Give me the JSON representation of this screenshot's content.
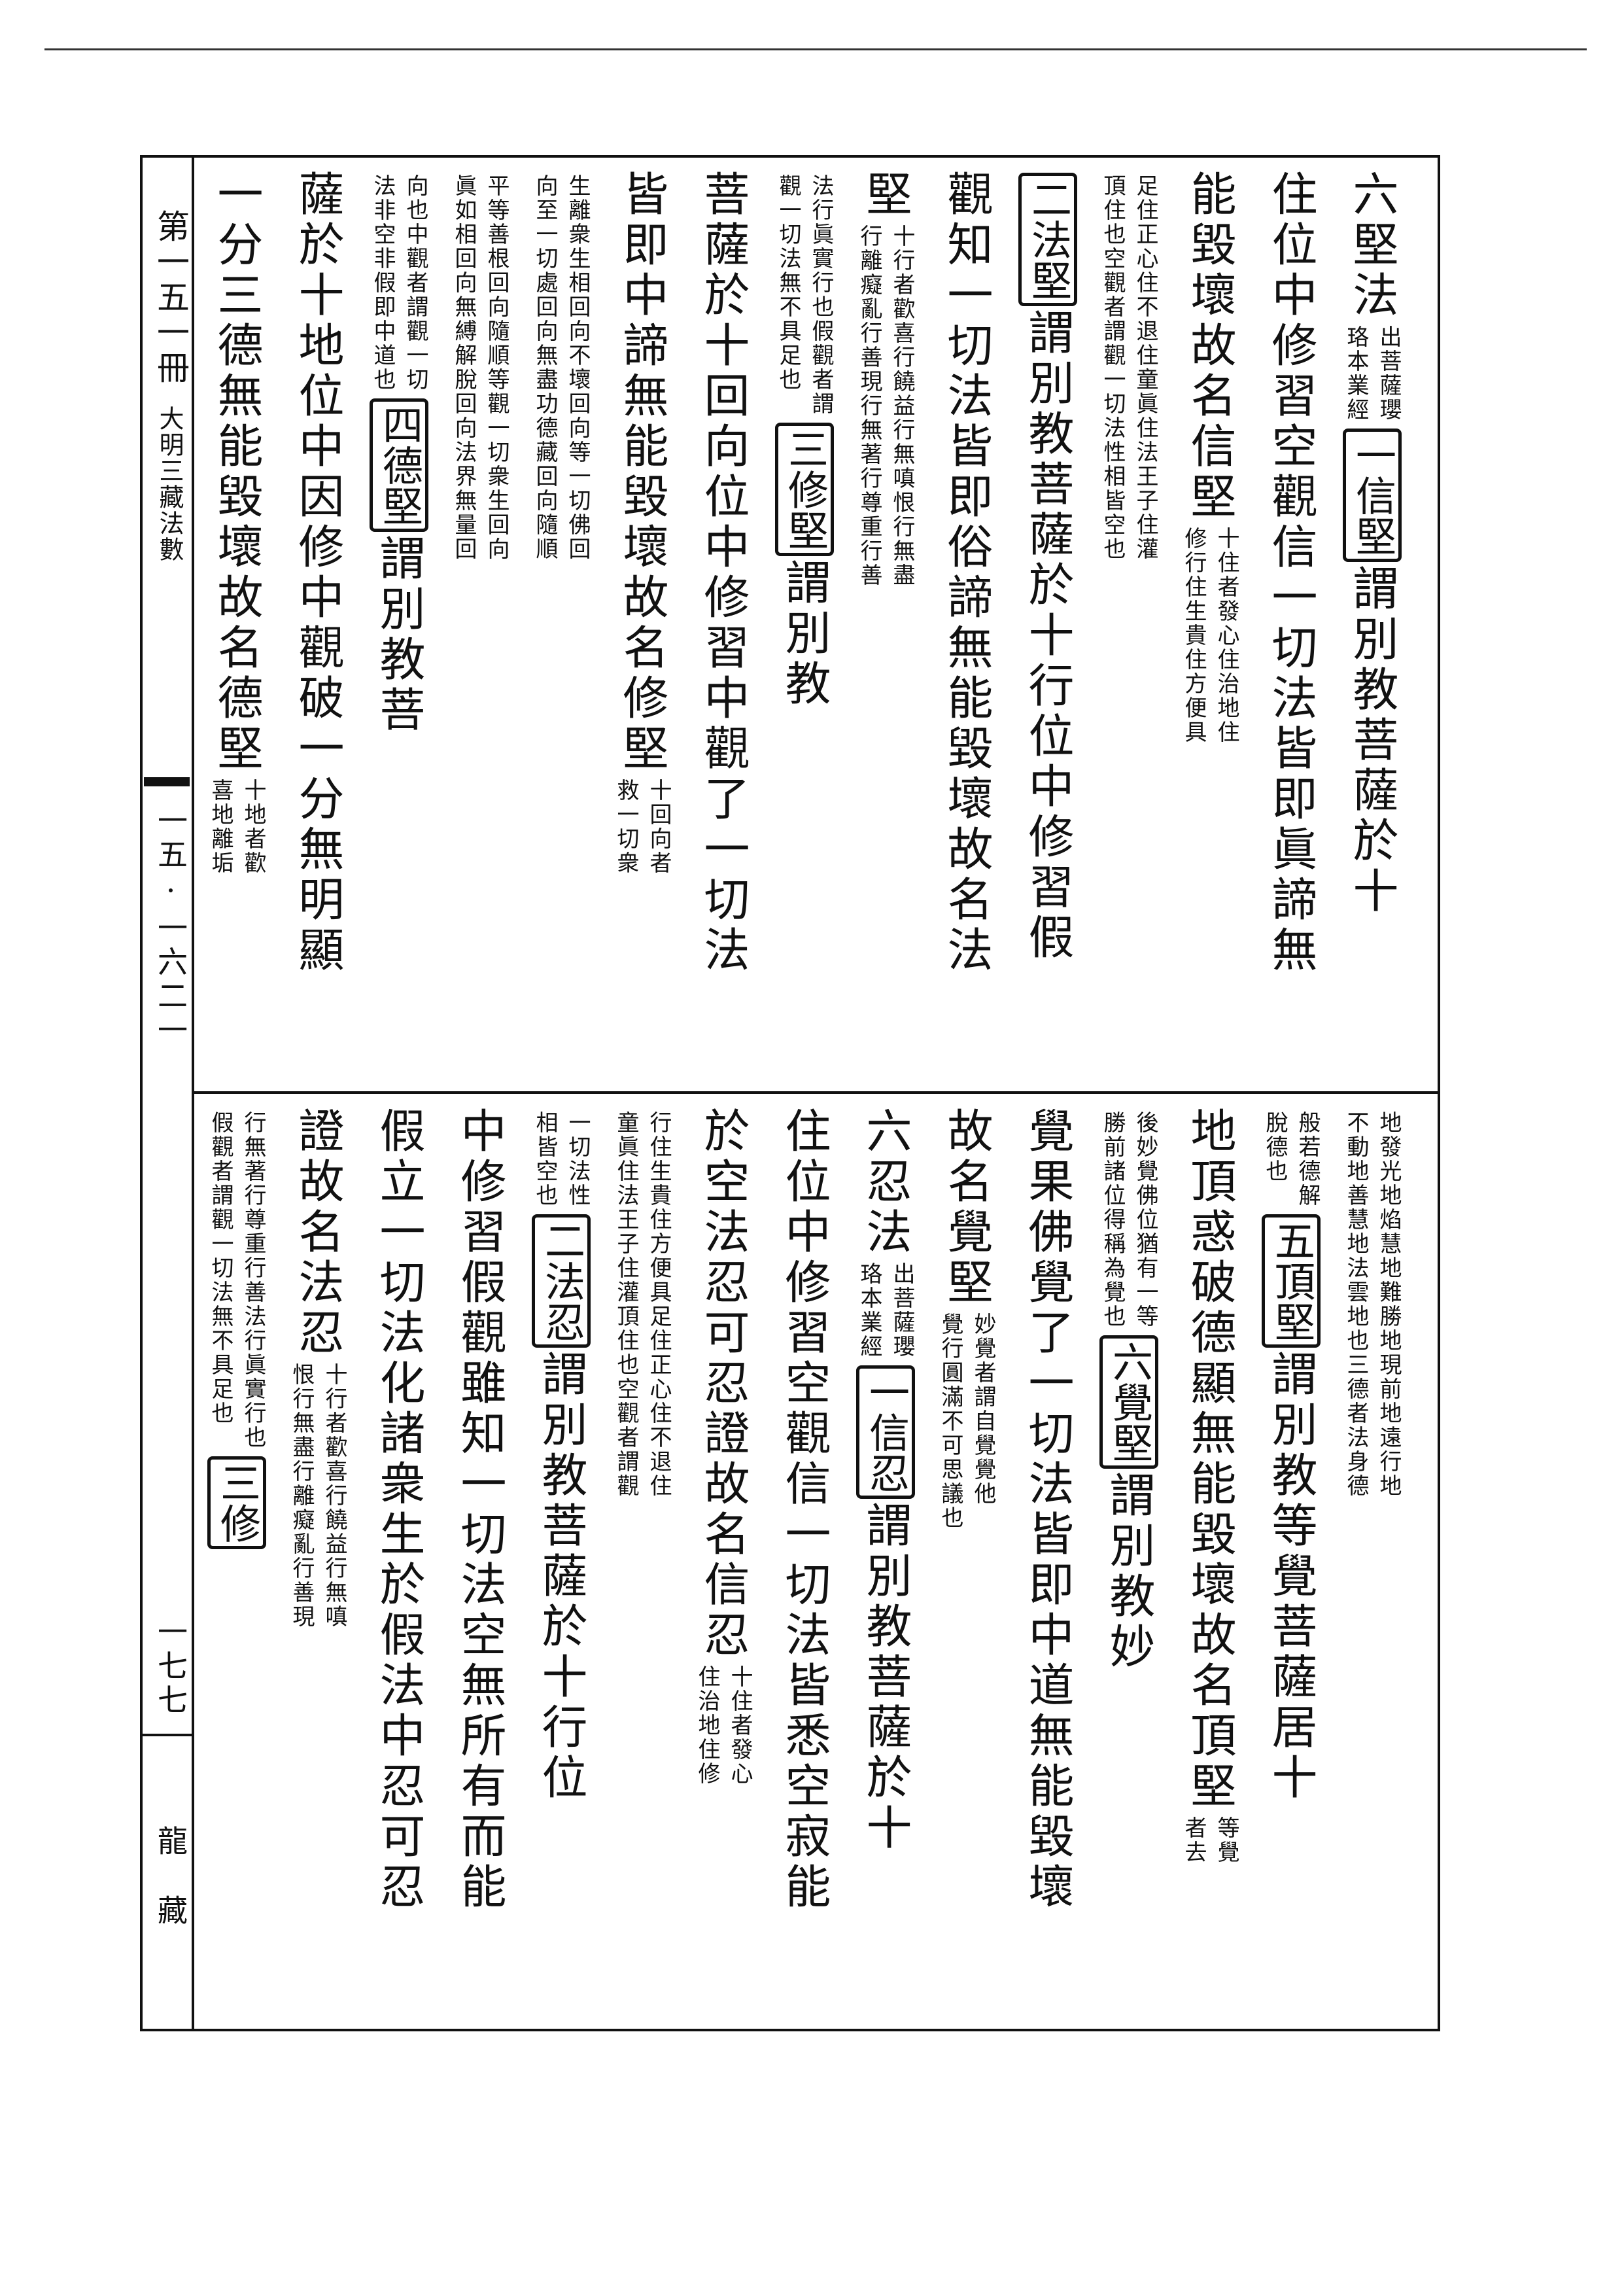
{
  "side": {
    "volume": "第一五一冊",
    "title": "大明三藏法數",
    "code": "一五·一六二一",
    "page": "一七七",
    "collection": "龍藏"
  },
  "panels": [
    {
      "columns": [
        {
          "segments": [
            {
              "kind": "big",
              "text": "六堅法"
            },
            {
              "kind": "note",
              "lines": [
                "出菩薩瓔",
                "珞本業經"
              ]
            },
            {
              "kind": "box",
              "text": "一信堅"
            },
            {
              "kind": "big",
              "text": "謂別教菩薩於十"
            }
          ]
        },
        {
          "segments": [
            {
              "kind": "big",
              "text": "住位中修習空觀信一切法皆即眞諦無"
            }
          ]
        },
        {
          "segments": [
            {
              "kind": "big",
              "text": "能毀壞故名信堅"
            },
            {
              "kind": "note",
              "lines": [
                "十住者發心住治地住",
                "修行住生貴住方便具"
              ]
            }
          ]
        },
        {
          "segments": [
            {
              "kind": "note",
              "lines": [
                "足住正心住不退住童眞住法王子住灌",
                "頂住也空觀者謂觀一切法性相皆空也"
              ]
            }
          ]
        },
        {
          "segments": [
            {
              "kind": "box",
              "text": "二法堅"
            },
            {
              "kind": "big",
              "text": "謂別教菩薩於十行位中修習假"
            }
          ]
        },
        {
          "segments": [
            {
              "kind": "big",
              "text": "觀知一切法皆即俗諦無能毀壞故名法"
            }
          ]
        },
        {
          "segments": [
            {
              "kind": "big",
              "text": "堅"
            },
            {
              "kind": "note",
              "lines": [
                "十行者歡喜行饒益行無嗔恨行無盡",
                "行離癡亂行善現行無著行尊重行善"
              ]
            }
          ]
        },
        {
          "segments": [
            {
              "kind": "note",
              "lines": [
                "法行眞實行也假觀者謂",
                "觀一切法無不具足也"
              ]
            },
            {
              "kind": "box",
              "text": "三修堅"
            },
            {
              "kind": "big",
              "text": "謂別教"
            }
          ]
        },
        {
          "segments": [
            {
              "kind": "big",
              "text": "菩薩於十回向位中修習中觀了一切法"
            }
          ]
        },
        {
          "segments": [
            {
              "kind": "big",
              "text": "皆即中諦無能毀壞故名修堅"
            },
            {
              "kind": "note",
              "lines": [
                "十回向者",
                "救一切衆"
              ]
            }
          ]
        },
        {
          "segments": [
            {
              "kind": "note",
              "lines": [
                "生離衆生相回向不壞回向等一切佛回",
                "向至一切處回向無盡功德藏回向隨順"
              ]
            }
          ]
        },
        {
          "segments": [
            {
              "kind": "note",
              "lines": [
                "平等善根回向隨順等觀一切衆生回向",
                "眞如相回向無縛解脫回向法界無量回"
              ]
            }
          ]
        },
        {
          "segments": [
            {
              "kind": "note",
              "lines": [
                "向也中觀者謂觀一切",
                "法非空非假即中道也"
              ]
            },
            {
              "kind": "box",
              "text": "四德堅"
            },
            {
              "kind": "big",
              "text": "謂別教菩"
            }
          ]
        },
        {
          "segments": [
            {
              "kind": "big",
              "text": "薩於十地位中因修中觀破一分無明顯"
            }
          ]
        },
        {
          "segments": [
            {
              "kind": "big",
              "text": "一分三德無能毀壞故名德堅"
            },
            {
              "kind": "note",
              "lines": [
                "十地者歡",
                "喜地離垢"
              ]
            }
          ]
        }
      ]
    },
    {
      "columns": [
        {
          "segments": [
            {
              "kind": "note",
              "lines": [
                "地發光地焰慧地難勝地現前地遠行地",
                "不動地善慧地法雲地也三德者法身德"
              ]
            }
          ]
        },
        {
          "segments": [
            {
              "kind": "note",
              "lines": [
                "般若德解",
                "脫德也"
              ]
            },
            {
              "kind": "box",
              "text": "五頂堅"
            },
            {
              "kind": "big",
              "text": "謂別教等覺菩薩居十"
            }
          ]
        },
        {
          "segments": [
            {
              "kind": "big",
              "text": "地頂惑破德顯無能毀壞故名頂堅"
            },
            {
              "kind": "note",
              "lines": [
                "等覺",
                "者去"
              ]
            }
          ]
        },
        {
          "segments": [
            {
              "kind": "note",
              "lines": [
                "後妙覺佛位猶有一等",
                "勝前諸位得稱為覺也"
              ]
            },
            {
              "kind": "box",
              "text": "六覺堅"
            },
            {
              "kind": "big",
              "text": "謂別教妙"
            }
          ]
        },
        {
          "segments": [
            {
              "kind": "big",
              "text": "覺果佛覺了一切法皆即中道無能毀壞"
            }
          ]
        },
        {
          "segments": [
            {
              "kind": "big",
              "text": "故名覺堅"
            },
            {
              "kind": "note",
              "lines": [
                "妙覺者謂自覺覺他",
                "覺行圓滿不可思議也"
              ]
            }
          ]
        },
        {
          "segments": [
            {
              "kind": "big",
              "text": "六忍法"
            },
            {
              "kind": "note",
              "lines": [
                "出菩薩瓔",
                "珞本業經"
              ]
            },
            {
              "kind": "box",
              "text": "一信忍"
            },
            {
              "kind": "big",
              "text": "謂別教菩薩於十"
            }
          ]
        },
        {
          "segments": [
            {
              "kind": "big",
              "text": "住位中修習空觀信一切法皆悉空寂能"
            }
          ]
        },
        {
          "segments": [
            {
              "kind": "big",
              "text": "於空法忍可忍證故名信忍"
            },
            {
              "kind": "note",
              "lines": [
                "十住者發心",
                "住治地住修"
              ]
            }
          ]
        },
        {
          "segments": [
            {
              "kind": "note",
              "lines": [
                "行住生貴住方便具足住正心住不退住",
                "童眞住法王子住灌頂住也空觀者謂觀"
              ]
            }
          ]
        },
        {
          "segments": [
            {
              "kind": "note",
              "lines": [
                "一切法性",
                "相皆空也"
              ]
            },
            {
              "kind": "box",
              "text": "二法忍"
            },
            {
              "kind": "big",
              "text": "謂別教菩薩於十行位"
            }
          ]
        },
        {
          "segments": [
            {
              "kind": "big",
              "text": "中修習假觀雖知一切法空無所有而能"
            }
          ]
        },
        {
          "segments": [
            {
              "kind": "big",
              "text": "假立一切法化諸衆生於假法中忍可忍"
            }
          ]
        },
        {
          "segments": [
            {
              "kind": "big",
              "text": "證故名法忍"
            },
            {
              "kind": "note",
              "lines": [
                "十行者歡喜行饒益行無嗔",
                "恨行無盡行離癡亂行善現"
              ]
            }
          ]
        },
        {
          "segments": [
            {
              "kind": "note",
              "lines": [
                "行無著行尊重行善法行眞實行也",
                "假觀者謂觀一切法無不具足也"
              ]
            },
            {
              "kind": "box",
              "text": "三修"
            }
          ]
        }
      ]
    }
  ]
}
